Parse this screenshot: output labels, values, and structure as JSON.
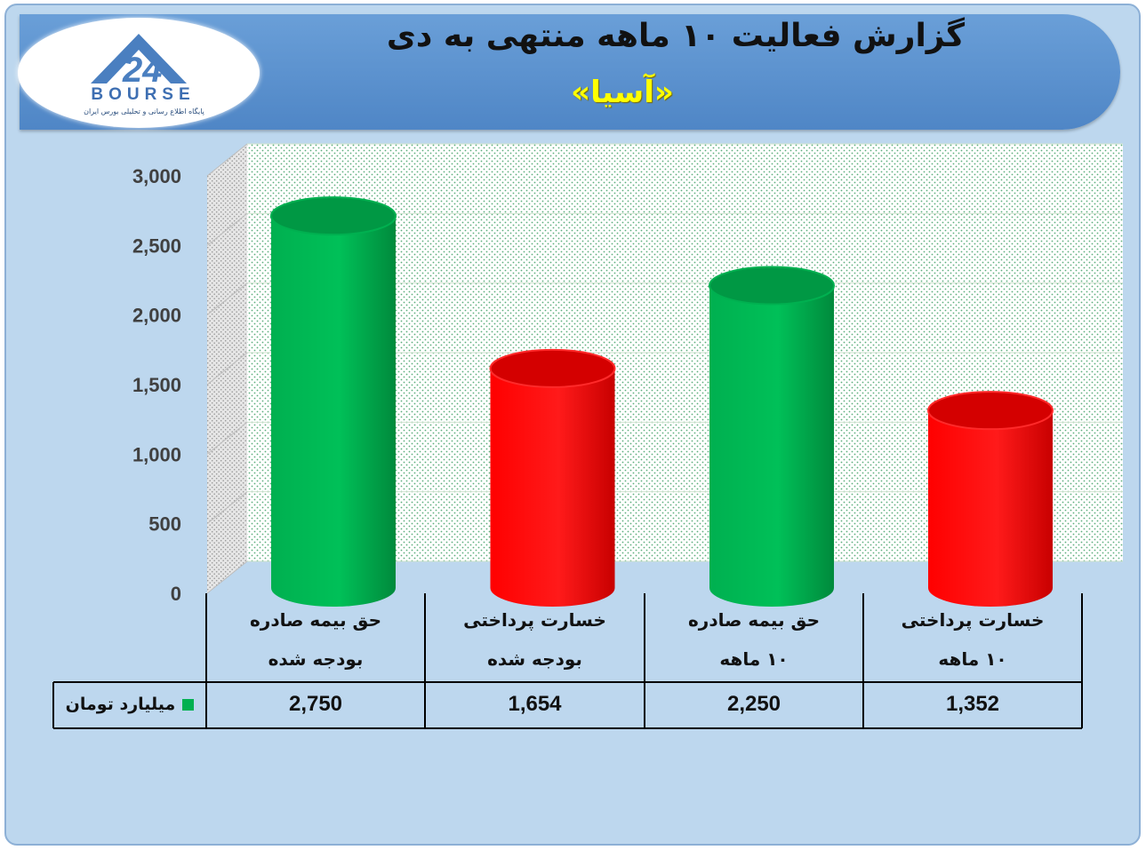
{
  "header": {
    "title": "گزارش فعالیت ۱۰ ماهه منتهی به دی",
    "company": "«آسیا»",
    "logo_text": "BOURSE",
    "logo_subtitle": "پایگاه اطلاع رسانی و تحلیلی بورس ایران"
  },
  "colors": {
    "background": "#bdd7ee",
    "banner": "#4f86c6",
    "title_company": "#ffff00",
    "green_bar": "#00b050",
    "red_bar": "#ff0000"
  },
  "chart_data": {
    "type": "bar",
    "title": "",
    "ylabel": "",
    "xlabel": "",
    "ylim": [
      0,
      3000
    ],
    "yticks": [
      "0",
      "500",
      "1,000",
      "1,500",
      "2,000",
      "2,500",
      "3,000"
    ],
    "categories": [
      {
        "line1": "حق بیمه صادره",
        "line2": "بودجه شده"
      },
      {
        "line1": "خسارت پرداختی",
        "line2": "بودجه شده"
      },
      {
        "line1": "حق بیمه صادره",
        "line2": "۱۰ ماهه"
      },
      {
        "line1": "خسارت پرداختی",
        "line2": "۱۰ ماهه"
      }
    ],
    "series": [
      {
        "name": "میلیارد تومان",
        "values": [
          2750,
          1654,
          2250,
          1352
        ],
        "value_labels": [
          "2,750",
          "1,654",
          "2,250",
          "1,352"
        ],
        "bar_colors": [
          "green",
          "red",
          "green",
          "red"
        ]
      }
    ],
    "legend": "data-table",
    "grid": true
  }
}
